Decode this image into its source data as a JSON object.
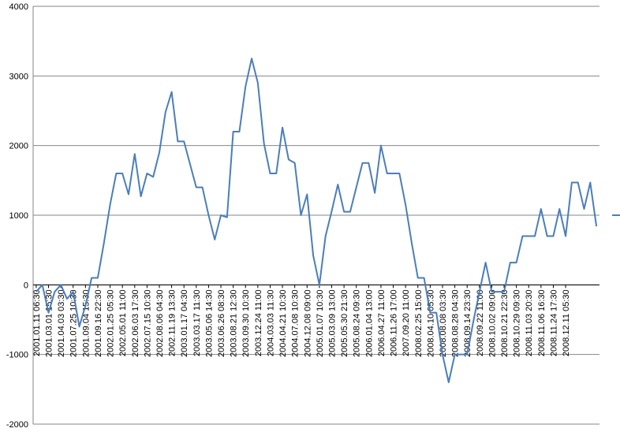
{
  "chart_data": {
    "type": "line",
    "categories": [
      "2001.01.11 06:30",
      null,
      "2001.03.01 15:30",
      null,
      "2001.04.03 03:30",
      null,
      "2001.07.25 10:30",
      null,
      "2001.09.04 15:30",
      null,
      "2001.09.16 22:30",
      null,
      "2002.01.25 05:30",
      null,
      "2002.05.01 11:00",
      null,
      "2002.06.03 17:30",
      null,
      "2002.07.15 10:30",
      null,
      "2002.08.06 04:30",
      null,
      "2002.11.19 13:30",
      null,
      "2003.01.17 04:30",
      null,
      "2003.03.17 11:30",
      null,
      "2003.05.06 14:30",
      null,
      "2003.06.26 08:30",
      null,
      "2003.08.21 12:30",
      null,
      "2003.09.30 10:30",
      null,
      "2003.12.24 11:00",
      null,
      "2004.03.03 11:30",
      null,
      "2004.04.21 10:30",
      null,
      "2004.07.08 10:30",
      null,
      "2004.12.08 09:00",
      null,
      "2005.01.07 10:30",
      null,
      "2005.03.09 13:00",
      null,
      "2005.05.30 21:30",
      null,
      "2005.08.24 09:30",
      null,
      "2006.01.04 13:00",
      null,
      "2006.04.27 11:00",
      null,
      "2006.11.26 17:00",
      null,
      "2007.09.20 11:00",
      null,
      "2008.02.25 15:00",
      null,
      "2008.04.10 05:30",
      null,
      "2008.08.08 03:30",
      null,
      "2008.08.28 04:30",
      null,
      "2008.09.14 23:30",
      null,
      "2008.09.22 11:00",
      null,
      "2008.10.02 09:00",
      null,
      "2008.10.21 22:30",
      null,
      "2008.10.29 09:30",
      null,
      "2008.11.03 20:30",
      null,
      "2008.11.06 16:30",
      null,
      "2008.11.24 17:30",
      null,
      "2008.12.11 05:30",
      null,
      null,
      null,
      null,
      null
    ],
    "series": [
      {
        "color": "#4a7ebb",
        "values": [
          -100,
          0,
          -400,
          -100,
          0,
          -200,
          -100,
          -600,
          -300,
          100,
          100,
          600,
          1150,
          1600,
          1600,
          1300,
          1880,
          1270,
          1600,
          1550,
          1900,
          2480,
          2770,
          2060,
          2060,
          1730,
          1400,
          1400,
          1000,
          650,
          1000,
          970,
          2200,
          2200,
          2850,
          3250,
          2900,
          2030,
          1600,
          1600,
          2260,
          1800,
          1750,
          1000,
          1300,
          420,
          0,
          700,
          1060,
          1440,
          1050,
          1050,
          1400,
          1750,
          1750,
          1320,
          2000,
          1600,
          1600,
          1600,
          1150,
          600,
          100,
          100,
          -400,
          -400,
          -1000,
          -1400,
          -1000,
          -1000,
          -1000,
          -530,
          -100,
          320,
          -100,
          -100,
          -100,
          320,
          320,
          700,
          700,
          700,
          1090,
          700,
          700,
          1090,
          700,
          1470,
          1470,
          1090,
          1470,
          840
        ]
      }
    ],
    "ylim": [
      -2000,
      4000
    ],
    "yticks": [
      -2000,
      -1000,
      0,
      1000,
      2000,
      3000,
      4000
    ],
    "grid": true,
    "legend": "right"
  }
}
